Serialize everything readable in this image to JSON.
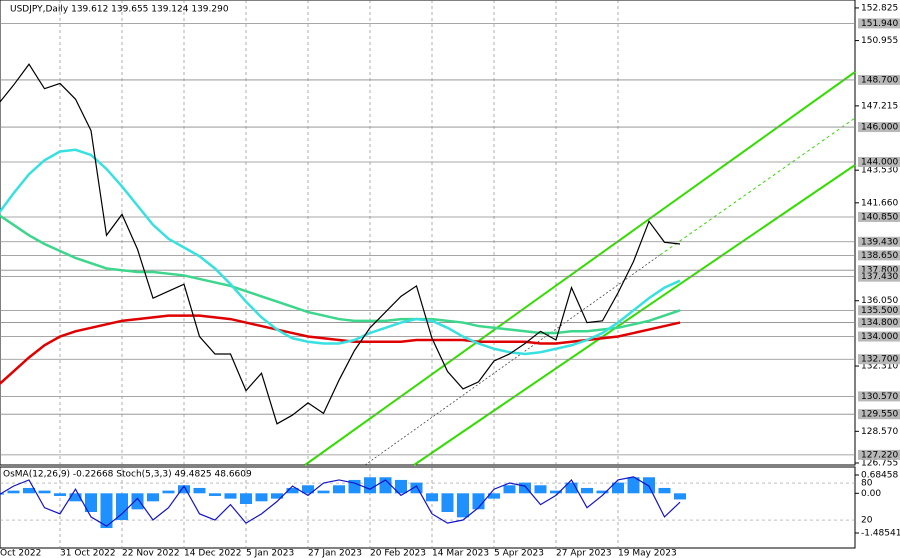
{
  "header": "USDJPY,Daily  139.612 139.655 139.124 139.290",
  "chart_data": [
    {
      "type": "line",
      "categories": [
        "Oct 2022",
        null,
        null,
        null,
        "31 Oct 2022",
        null,
        null,
        null,
        "22 Nov 2022",
        null,
        null,
        null,
        "14 Dec 2022",
        null,
        null,
        null,
        "5 Jan 2023",
        null,
        null,
        null,
        "27 Jan 2023",
        null,
        null,
        null,
        "20 Feb 2023",
        null,
        null,
        null,
        "14 Mar 2023",
        null,
        null,
        null,
        "5 Apr 2023",
        null,
        null,
        null,
        "27 Apr 2023",
        null,
        null,
        null,
        "19 May 2023",
        null,
        null,
        null,
        null
      ],
      "series": [
        {
          "color": "#000000",
          "values": [
            147.3,
            148.4,
            149.6,
            148.2,
            148.5,
            147.6,
            145.8,
            139.8,
            141.0,
            139.0,
            136.2,
            136.6,
            137.0,
            134.0,
            133.0,
            133.0,
            130.9,
            131.9,
            129.0,
            129.5,
            130.2,
            129.6,
            131.5,
            133.2,
            134.5,
            135.4,
            136.3,
            136.9,
            133.9,
            132.0,
            131.0,
            131.4,
            132.6,
            133.0,
            133.6,
            134.3,
            133.8,
            136.8,
            134.8,
            134.9,
            136.5,
            138.3,
            140.6,
            139.4,
            139.3
          ]
        },
        {
          "color": "#e00000",
          "values": [
            131.2,
            132.0,
            132.8,
            133.5,
            134.0,
            134.3,
            134.5,
            134.7,
            134.9,
            135.0,
            135.1,
            135.2,
            135.2,
            135.2,
            135.1,
            135.0,
            134.8,
            134.6,
            134.4,
            134.2,
            134.0,
            133.9,
            133.8,
            133.7,
            133.7,
            133.7,
            133.7,
            133.8,
            133.8,
            133.8,
            133.8,
            133.7,
            133.7,
            133.7,
            133.7,
            133.6,
            133.6,
            133.7,
            133.8,
            133.9,
            134.0,
            134.2,
            134.4,
            134.6,
            134.8
          ]
        },
        {
          "color": "#3cd68c",
          "values": [
            141.0,
            140.4,
            139.8,
            139.3,
            138.9,
            138.5,
            138.2,
            137.9,
            137.8,
            137.7,
            137.7,
            137.6,
            137.5,
            137.3,
            137.1,
            136.9,
            136.6,
            136.3,
            136.0,
            135.7,
            135.4,
            135.2,
            135.0,
            134.9,
            134.9,
            134.9,
            135.0,
            135.0,
            135.0,
            134.9,
            134.8,
            134.6,
            134.5,
            134.4,
            134.3,
            134.2,
            134.2,
            134.3,
            134.3,
            134.4,
            134.5,
            134.7,
            134.9,
            135.2,
            135.5
          ]
        },
        {
          "color": "#38e0e0",
          "values": [
            141.0,
            142.2,
            143.3,
            144.1,
            144.6,
            144.7,
            144.4,
            143.6,
            142.6,
            141.5,
            140.4,
            139.6,
            139.1,
            138.6,
            137.9,
            137.0,
            136.0,
            135.1,
            134.4,
            133.9,
            133.7,
            133.6,
            133.6,
            133.8,
            134.2,
            134.5,
            134.8,
            135.0,
            134.9,
            134.5,
            134.0,
            133.6,
            133.3,
            133.1,
            133.0,
            133.1,
            133.3,
            133.5,
            133.8,
            134.2,
            134.8,
            135.5,
            136.2,
            136.8,
            137.2
          ]
        }
      ],
      "ylim": [
        126.64,
        153.28
      ],
      "yticks": [
        152.825,
        150.955,
        147.215,
        {
          "value": 143.53,
          "label": "143.530"
        },
        {
          "value": 141.66,
          "label": "141.660"
        },
        {
          "value": 136.05,
          "label": "136.050"
        },
        {
          "value": 132.31,
          "label": "132.310"
        },
        {
          "value": 128.57,
          "label": "128.570"
        },
        126.755
      ],
      "levels": [
        {
          "value": 151.94,
          "label": "151.940"
        },
        {
          "value": 148.7,
          "label": "148.700"
        },
        {
          "value": 146,
          "label": "146.000"
        },
        {
          "value": 144,
          "label": "144.000"
        },
        {
          "value": 140.85,
          "label": "140.850"
        },
        {
          "value": 139.43,
          "label": "139.430"
        },
        {
          "value": 138.65,
          "label": "138.650"
        },
        {
          "value": 137.8,
          "label": "137.800"
        },
        {
          "value": 137.43,
          "label": "137.430"
        },
        {
          "value": 135.5,
          "label": "135.500"
        },
        {
          "value": 134.8,
          "label": "134.800"
        },
        {
          "value": 134,
          "label": "134.000"
        },
        {
          "value": 132.7,
          "label": "132.700"
        },
        {
          "value": 130.57,
          "label": "130.570"
        },
        {
          "value": 129.55,
          "label": "129.550"
        },
        {
          "value": 127.22,
          "label": "127.220"
        }
      ]
    },
    {
      "type": "bar",
      "title": "OsMA(12,26,9) -0.22668  Stoch(5,3,3) 49.4825 48.6609",
      "values": [
        -0.05,
        0.1,
        0.2,
        0.1,
        -0.1,
        -0.3,
        -0.7,
        -1.3,
        -1.0,
        -0.6,
        -0.3,
        0.1,
        0.3,
        0.2,
        -0.1,
        -0.2,
        -0.4,
        -0.3,
        -0.2,
        0.2,
        0.3,
        0.1,
        0.3,
        0.5,
        0.6,
        0.6,
        0.5,
        0.4,
        -0.3,
        -0.7,
        -0.9,
        -0.6,
        -0.2,
        0.3,
        0.4,
        0.3,
        0.1,
        0.4,
        0.2,
        0.1,
        0.4,
        0.6,
        0.6,
        0.2,
        -0.23
      ],
      "color": "#1e90ff",
      "ylim": [
        -2.047,
        0.984
      ],
      "yticks": [
        0.68458,
        {
          "value": 0,
          "label": "0.00"
        },
        -1.48541
      ],
      "series": [
        {
          "color": "#1414c8",
          "axis": "y2",
          "values": [
            60,
            75,
            85,
            40,
            30,
            70,
            25,
            10,
            30,
            55,
            20,
            40,
            75,
            30,
            20,
            45,
            15,
            30,
            50,
            75,
            60,
            80,
            85,
            80,
            70,
            85,
            60,
            75,
            30,
            15,
            20,
            40,
            70,
            80,
            75,
            45,
            60,
            85,
            40,
            60,
            85,
            90,
            75,
            25,
            49
          ]
        }
      ],
      "y2lim": [
        -25.4,
        106
      ],
      "y2ticks": [
        80,
        20
      ]
    }
  ]
}
